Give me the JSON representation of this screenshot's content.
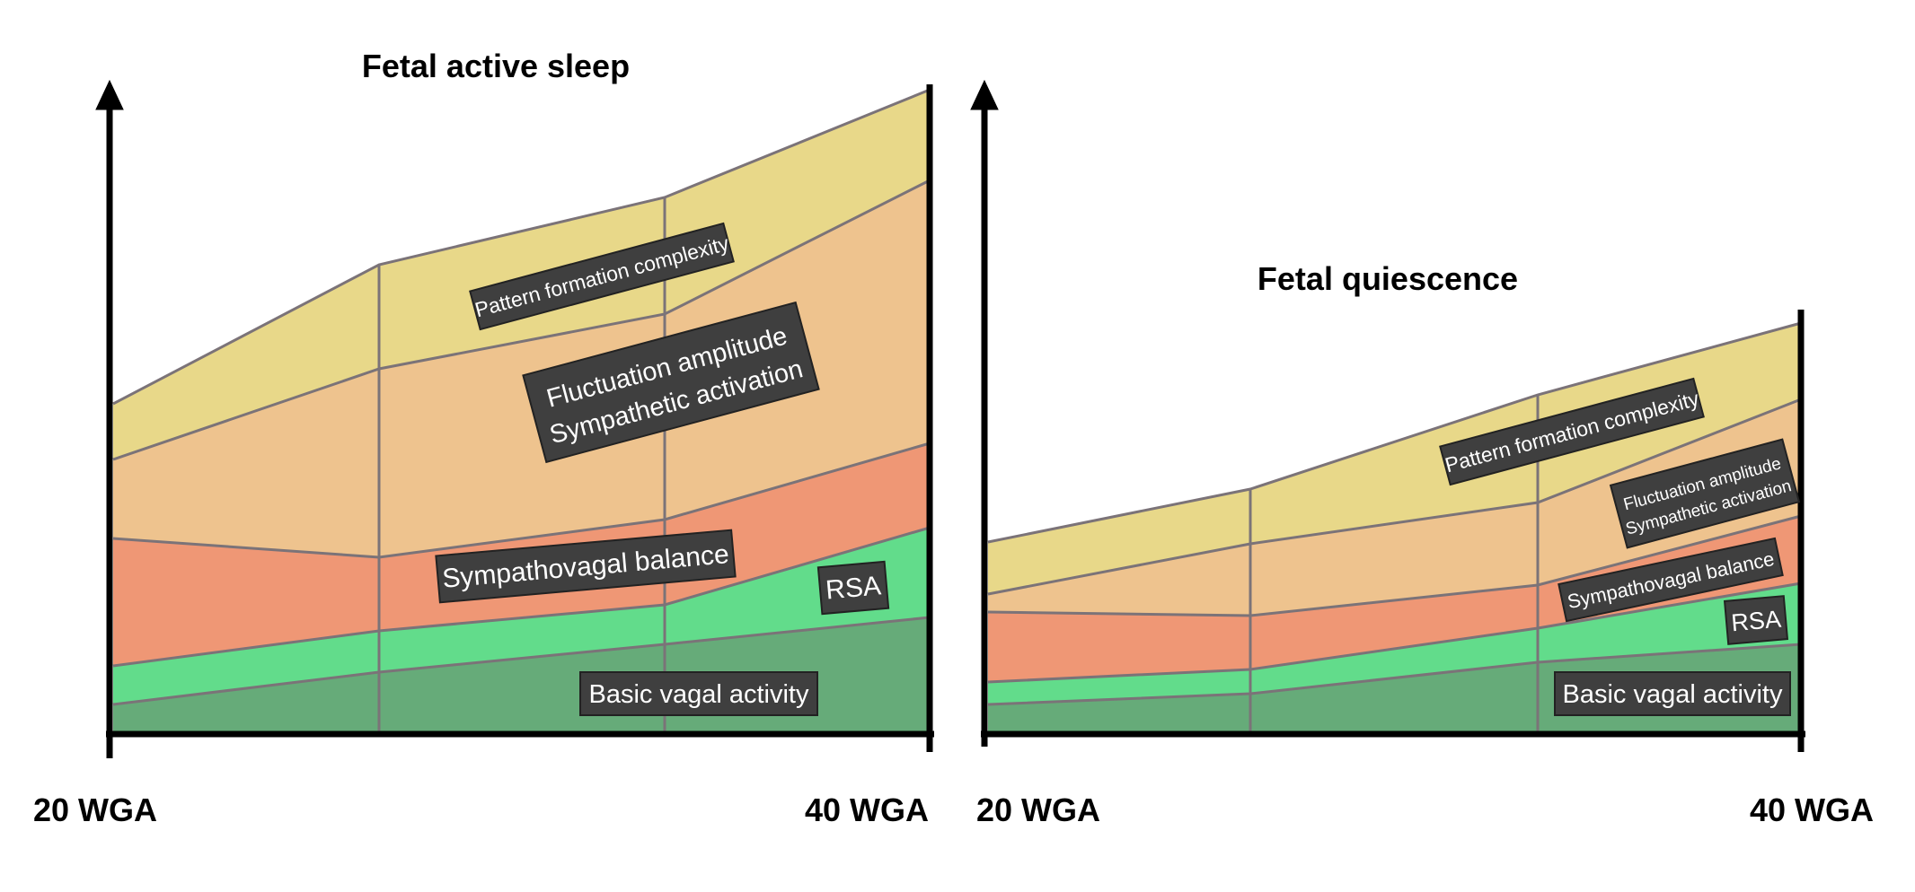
{
  "colors": {
    "basic_vagal": "#66AB79",
    "rsa": "#62DC8B",
    "sympathovagal": "#EF9775",
    "fluctuation": "#EEC38E",
    "pattern": "#E8D889",
    "boundary": "#7B7378",
    "label_bg": "#3f3f3f",
    "label_text": "#ffffff",
    "axis": "#000000"
  },
  "panels": [
    {
      "title": "Fetal active sleep",
      "x_start_label": "20 WGA",
      "x_end_label": "40 WGA",
      "layers": {
        "basic_vagal": "Basic vagal activity",
        "rsa": "RSA",
        "sympathovagal": "Sympathovagal balance",
        "fluctuation": [
          "Fluctuation amplitude",
          "Sympathetic activation"
        ],
        "pattern": "Pattern formation complexity"
      }
    },
    {
      "title": "Fetal quiescence",
      "x_start_label": "20 WGA",
      "x_end_label": "40 WGA",
      "layers": {
        "basic_vagal": "Basic vagal activity",
        "rsa": "RSA",
        "sympathovagal": "Sympathovagal balance",
        "fluctuation": [
          "Fluctuation amplitude",
          "Sympathetic activation"
        ],
        "pattern": "Pattern formation complexity"
      }
    }
  ]
}
